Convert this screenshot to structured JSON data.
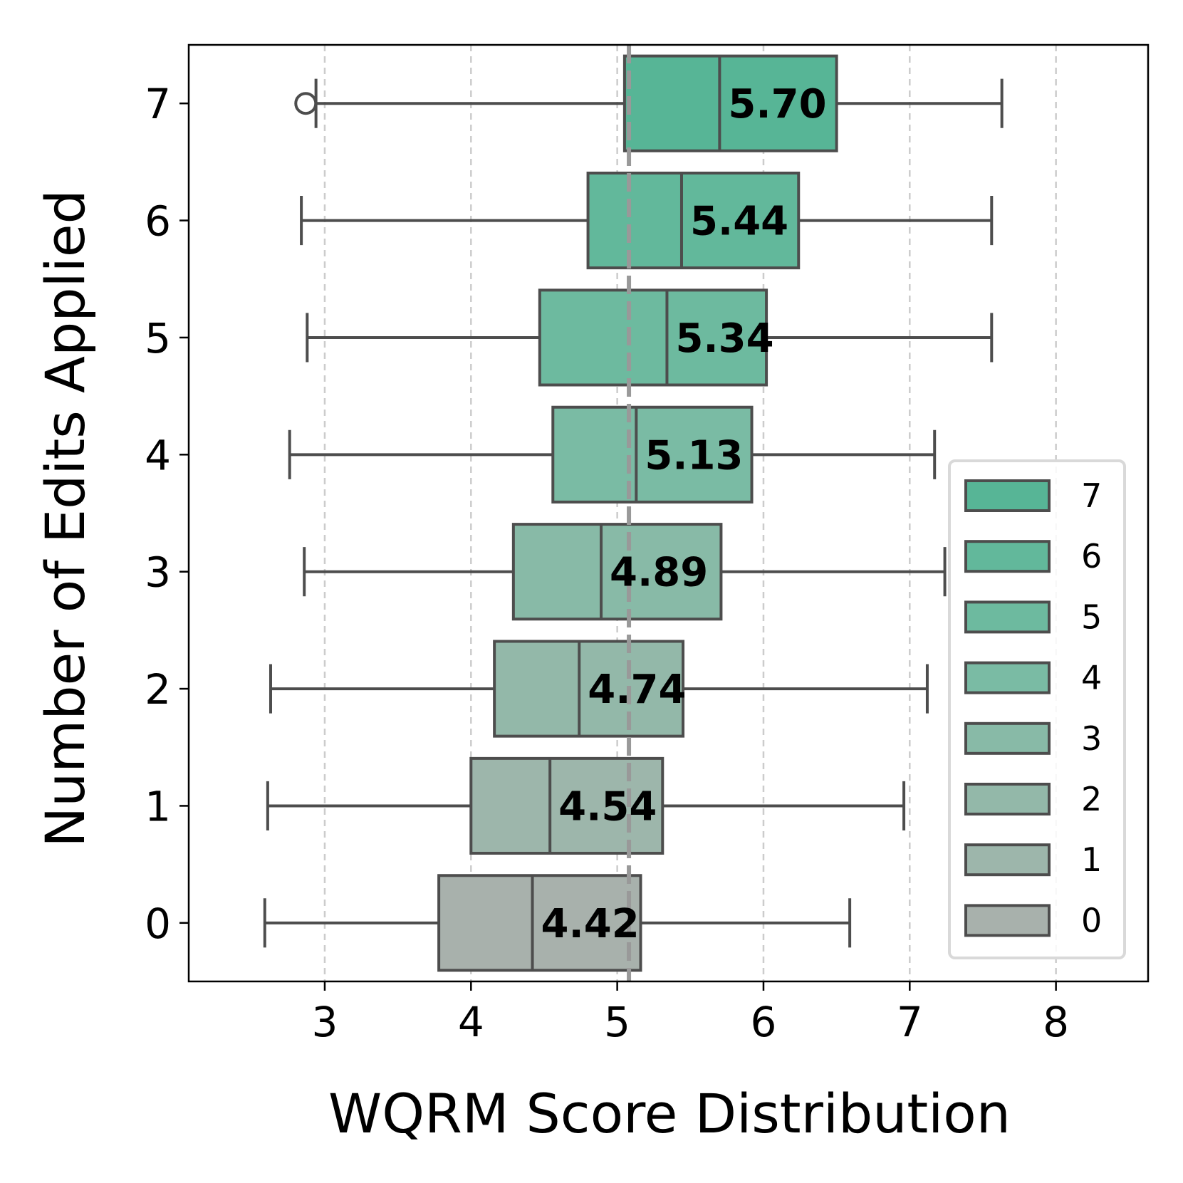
{
  "chart_data": {
    "type": "boxplot",
    "orientation": "horizontal",
    "xlabel": "WQRM Score Distribution",
    "ylabel": "Number of Edits Applied",
    "xlim": [
      2.07,
      8.63
    ],
    "x_ticks": [
      3,
      4,
      5,
      6,
      7,
      8
    ],
    "categories": [
      "0",
      "1",
      "2",
      "3",
      "4",
      "5",
      "6",
      "7"
    ],
    "grid": "vertical dashed",
    "reference_line": {
      "value": 5.08,
      "style": "dashed"
    },
    "legend": {
      "placement": "lower-right",
      "entries": [
        "7",
        "6",
        "5",
        "4",
        "3",
        "2",
        "1",
        "0"
      ]
    },
    "boxes": [
      {
        "category": "0",
        "whisker_low": 2.59,
        "q1": 3.78,
        "median": 4.42,
        "q3": 5.16,
        "whisker_high": 6.59,
        "median_label": "4.42",
        "outliers": [],
        "color": "#a8b1ac"
      },
      {
        "category": "1",
        "whisker_low": 2.61,
        "q1": 4.0,
        "median": 4.54,
        "q3": 5.31,
        "whisker_high": 6.96,
        "median_label": "4.54",
        "outliers": [],
        "color": "#9db6ab"
      },
      {
        "category": "2",
        "whisker_low": 2.63,
        "q1": 4.16,
        "median": 4.74,
        "q3": 5.45,
        "whisker_high": 7.12,
        "median_label": "4.74",
        "outliers": [],
        "color": "#93b8a9"
      },
      {
        "category": "3",
        "whisker_low": 2.86,
        "q1": 4.29,
        "median": 4.89,
        "q3": 5.71,
        "whisker_high": 7.24,
        "median_label": "4.89",
        "outliers": [],
        "color": "#88baa7"
      },
      {
        "category": "4",
        "whisker_low": 2.76,
        "q1": 4.56,
        "median": 5.13,
        "q3": 5.92,
        "whisker_high": 7.17,
        "median_label": "5.13",
        "outliers": [],
        "color": "#7abba4"
      },
      {
        "category": "5",
        "whisker_low": 2.88,
        "q1": 4.47,
        "median": 5.34,
        "q3": 6.02,
        "whisker_high": 7.56,
        "median_label": "5.34",
        "outliers": [],
        "color": "#6dba9f"
      },
      {
        "category": "6",
        "whisker_low": 2.84,
        "q1": 4.8,
        "median": 5.44,
        "q3": 6.24,
        "whisker_high": 7.56,
        "median_label": "5.44",
        "outliers": [],
        "color": "#62b89b"
      },
      {
        "category": "7",
        "whisker_low": 2.94,
        "q1": 5.05,
        "median": 5.7,
        "q3": 6.5,
        "whisker_high": 7.63,
        "median_label": "5.70",
        "outliers": [
          2.87
        ],
        "color": "#57b596"
      }
    ]
  }
}
